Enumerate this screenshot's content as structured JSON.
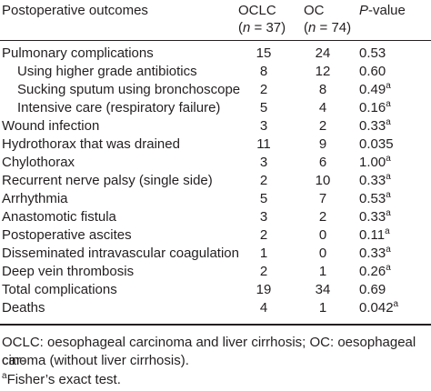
{
  "table": {
    "header": {
      "outcome": "Postoperative outcomes",
      "group1_name": "OCLC",
      "group1_n": "(n = 37)",
      "group2_name": "OC",
      "group2_n": "(n = 74)",
      "p_letter": "P",
      "p_rest": "-value"
    },
    "rows": [
      {
        "label": "Pulmonary complications",
        "oclc": "15",
        "oc": "24",
        "p": "0.53",
        "sup": ""
      },
      {
        "label": "Using higher grade antibiotics",
        "oclc": "8",
        "oc": "12",
        "p": "0.60",
        "sup": "",
        "indent": true
      },
      {
        "label": "Sucking sputum using bronchoscope",
        "oclc": "2",
        "oc": "8",
        "p": "0.49",
        "sup": "a",
        "indent": true
      },
      {
        "label": "Intensive care (respiratory failure)",
        "oclc": "5",
        "oc": "4",
        "p": "0.16",
        "sup": "a",
        "indent": true
      },
      {
        "label": "Wound infection",
        "oclc": "3",
        "oc": "2",
        "p": "0.33",
        "sup": "a"
      },
      {
        "label": "Hydrothorax that was drained",
        "oclc": "11",
        "oc": "9",
        "p": "0.035",
        "sup": ""
      },
      {
        "label": "Chylothorax",
        "oclc": "3",
        "oc": "6",
        "p": "1.00",
        "sup": "a"
      },
      {
        "label": "Recurrent nerve palsy (single side)",
        "oclc": "2",
        "oc": "10",
        "p": "0.33",
        "sup": "a"
      },
      {
        "label": "Arrhythmia",
        "oclc": "5",
        "oc": "7",
        "p": "0.53",
        "sup": "a"
      },
      {
        "label": "Anastomotic fistula",
        "oclc": "3",
        "oc": "2",
        "p": "0.33",
        "sup": "a"
      },
      {
        "label": "Postoperative ascites",
        "oclc": "2",
        "oc": "0",
        "p": "0.11",
        "sup": "a"
      },
      {
        "label": "Disseminated intravascular coagulation",
        "oclc": "1",
        "oc": "0",
        "p": "0.33",
        "sup": "a"
      },
      {
        "label": "Deep vein thrombosis",
        "oclc": "2",
        "oc": "1",
        "p": "0.26",
        "sup": "a"
      },
      {
        "label": "Total complications",
        "oclc": "19",
        "oc": "34",
        "p": "0.69",
        "sup": ""
      },
      {
        "label": "Deaths",
        "oclc": "4",
        "oc": "1",
        "p": "0.042",
        "sup": "a"
      }
    ]
  },
  "footnotes": {
    "abbreviations_line1": "OCLC: oesophageal carcinoma and liver cirrhosis; OC: oesophageal car-",
    "abbreviations_line2": "cinoma (without liver cirrhosis).",
    "marker": "a",
    "fisher": "Fisher’s exact test."
  }
}
